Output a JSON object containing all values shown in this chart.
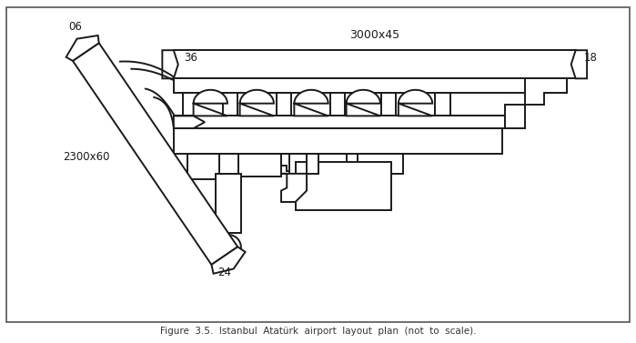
{
  "title": "Figure  3.5.  Istanbul  Atatürk  airport  layout  plan  (not  to  scale).",
  "label_3000x45": "3000x45",
  "label_2300x60": "2300x60",
  "label_06": "06",
  "label_18": "18",
  "label_36": "36",
  "label_24": "24",
  "line_color": "#1a1a1a",
  "bg_color": "#ffffff",
  "lw": 1.4
}
